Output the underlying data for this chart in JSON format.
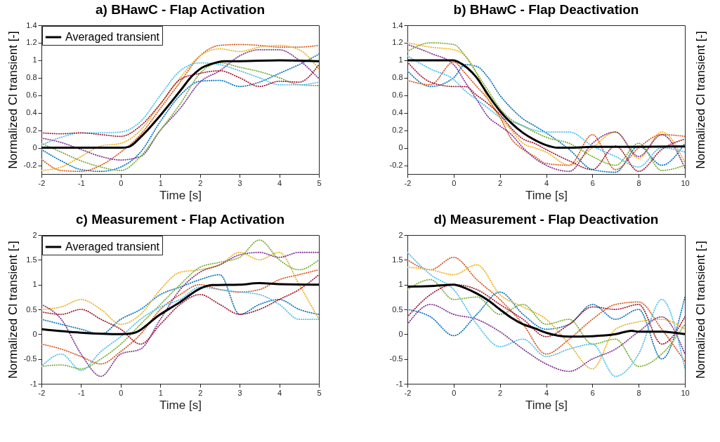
{
  "chart_data": [
    {
      "type": "line",
      "title": "a) BHawC - Flap Activation",
      "xlabel": "Time [s]",
      "ylabel": "Normalized Cl transient [-]",
      "xlim": [
        -2,
        5
      ],
      "xticks": [
        -2,
        -1,
        0,
        1,
        2,
        3,
        4,
        5
      ],
      "ylim": [
        -0.3,
        1.4
      ],
      "yticks": [
        -0.2,
        0,
        0.2,
        0.4,
        0.6,
        0.8,
        1,
        1.2,
        1.4
      ],
      "grid": false,
      "legend": "top left",
      "series": [
        {
          "color": "#0072bd",
          "line_style": "dotted",
          "x": [
            -2,
            -1.5,
            -1,
            -0.5,
            0,
            0.5,
            1,
            1.5,
            2,
            2.5,
            3,
            3.5,
            4,
            4.5,
            5
          ],
          "values": [
            -0.02,
            -0.15,
            -0.25,
            -0.27,
            -0.22,
            -0.05,
            0.3,
            0.6,
            0.76,
            0.77,
            0.7,
            0.75,
            0.85,
            0.95,
            1.07
          ]
        },
        {
          "color": "#d95319",
          "line_style": "dotted",
          "x": [
            -2,
            -1.5,
            -1,
            -0.5,
            0,
            0.5,
            1,
            1.5,
            2,
            2.5,
            3,
            3.5,
            4,
            4.5,
            5
          ],
          "values": [
            -0.13,
            -0.26,
            -0.27,
            -0.2,
            -0.05,
            0.15,
            0.45,
            0.75,
            1.05,
            1.17,
            1.18,
            1.17,
            1.15,
            1.15,
            1.17
          ]
        },
        {
          "color": "#edb120",
          "line_style": "dotted",
          "x": [
            -2,
            -1.5,
            -1,
            -0.5,
            0,
            0.5,
            1,
            1.5,
            2,
            2.5,
            3,
            3.5,
            4,
            4.5,
            5
          ],
          "values": [
            -0.26,
            -0.22,
            -0.1,
            0.02,
            0.05,
            0.2,
            0.5,
            0.8,
            1.05,
            1.13,
            1.1,
            1.15,
            1.17,
            1.12,
            0.9
          ]
        },
        {
          "color": "#7e2f8e",
          "line_style": "dotted",
          "x": [
            -2,
            -1.5,
            -1,
            -0.5,
            0,
            0.5,
            1,
            1.5,
            2,
            2.5,
            3,
            3.5,
            4,
            4.5,
            5
          ],
          "values": [
            0.11,
            0.06,
            -0.02,
            -0.1,
            -0.14,
            -0.1,
            0.2,
            0.45,
            0.75,
            0.88,
            1.05,
            1.12,
            1.12,
            1.0,
            0.79
          ]
        },
        {
          "color": "#77ac30",
          "line_style": "dotted",
          "x": [
            -2,
            -1.5,
            -1,
            -0.5,
            0,
            0.5,
            1,
            1.5,
            2,
            2.5,
            3,
            3.5,
            4,
            4.5,
            5
          ],
          "values": [
            0.05,
            -0.05,
            -0.15,
            -0.22,
            -0.26,
            -0.1,
            0.2,
            0.5,
            0.85,
            0.97,
            0.92,
            0.87,
            0.8,
            0.72,
            0.71
          ]
        },
        {
          "color": "#4dbeee",
          "line_style": "dotted",
          "x": [
            -2,
            -1.5,
            -1,
            -0.5,
            0,
            0.5,
            1,
            1.5,
            2,
            2.5,
            3,
            3.5,
            4,
            4.5,
            5
          ],
          "values": [
            0.03,
            0.12,
            0.17,
            0.17,
            0.18,
            0.3,
            0.6,
            0.88,
            0.97,
            0.95,
            0.88,
            0.8,
            0.72,
            0.72,
            0.75
          ]
        },
        {
          "color": "#a2142f",
          "line_style": "dotted",
          "x": [
            -2,
            -1.5,
            -1,
            -0.5,
            0,
            0.5,
            1,
            1.5,
            2,
            2.5,
            3,
            3.5,
            4,
            4.5,
            5
          ],
          "values": [
            0.17,
            0.16,
            0.17,
            0.15,
            0.13,
            0.25,
            0.5,
            0.78,
            0.85,
            0.88,
            0.8,
            0.7,
            0.76,
            0.75,
            0.95
          ]
        },
        {
          "name": "Averaged transient",
          "color": "#000000",
          "line_style": "solid",
          "x": [
            -2,
            -1,
            0,
            0.2,
            0.5,
            1,
            1.5,
            1.8,
            2,
            2.3,
            2.6,
            3,
            4,
            5
          ],
          "values": [
            0,
            0,
            0,
            0.01,
            0.12,
            0.37,
            0.65,
            0.82,
            0.9,
            0.96,
            0.99,
            0.99,
            1.0,
            0.99
          ]
        }
      ]
    },
    {
      "type": "line",
      "title": "b) BHawC - Flap Deactivation",
      "xlabel": "Time [s]",
      "ylabel": "Normalized Cl transient [-]",
      "xlim": [
        -2,
        10
      ],
      "xticks": [
        -2,
        0,
        2,
        4,
        6,
        8,
        10
      ],
      "ylim": [
        -0.3,
        1.4
      ],
      "yticks": [
        -0.2,
        0,
        0.2,
        0.4,
        0.6,
        0.8,
        1,
        1.2,
        1.4
      ],
      "grid": false,
      "series": [
        {
          "color": "#0072bd",
          "line_style": "dotted",
          "x": [
            -2,
            -1,
            0,
            0.5,
            1,
            1.5,
            2,
            2.5,
            3,
            3.5,
            4,
            5,
            6,
            7,
            8,
            9,
            10
          ],
          "values": [
            0.88,
            0.7,
            0.8,
            0.95,
            0.93,
            0.8,
            0.6,
            0.45,
            0.33,
            0.25,
            0.17,
            -0.02,
            -0.25,
            -0.28,
            0.02,
            -0.2,
            0.05
          ]
        },
        {
          "color": "#d95319",
          "line_style": "dotted",
          "x": [
            -2,
            -1,
            0,
            0.5,
            1,
            1.5,
            2,
            2.5,
            3,
            3.5,
            4,
            5,
            6,
            7,
            8,
            9,
            10
          ],
          "values": [
            0.77,
            0.72,
            0.98,
            0.85,
            0.7,
            0.55,
            0.35,
            0.1,
            -0.02,
            -0.1,
            -0.18,
            -0.2,
            0.15,
            -0.25,
            0.0,
            0.15,
            0.13
          ]
        },
        {
          "color": "#edb120",
          "line_style": "dotted",
          "x": [
            -2,
            -1,
            0,
            0.5,
            1,
            1.5,
            2,
            2.5,
            3,
            3.5,
            4,
            5,
            6,
            7,
            8,
            9,
            10
          ],
          "values": [
            1.2,
            1.15,
            1.12,
            1.05,
            0.85,
            0.55,
            0.35,
            0.2,
            0.05,
            0.0,
            -0.05,
            -0.2,
            0.0,
            0.18,
            -0.12,
            0.18,
            -0.17
          ]
        },
        {
          "color": "#7e2f8e",
          "line_style": "dotted",
          "x": [
            -2,
            -1,
            0,
            0.5,
            1,
            1.5,
            2,
            2.5,
            3,
            3.5,
            4,
            5,
            6,
            7,
            8,
            9,
            10
          ],
          "values": [
            1.18,
            1.08,
            0.95,
            0.75,
            0.55,
            0.35,
            0.25,
            0.15,
            0.0,
            -0.12,
            -0.2,
            -0.27,
            0.05,
            0.18,
            -0.1,
            0.15,
            -0.23
          ]
        },
        {
          "color": "#77ac30",
          "line_style": "dotted",
          "x": [
            -2,
            -1,
            0,
            0.5,
            1,
            1.5,
            2,
            2.5,
            3,
            3.5,
            4,
            5,
            6,
            7,
            8,
            9,
            10
          ],
          "values": [
            1.1,
            1.2,
            1.18,
            1.05,
            0.85,
            0.65,
            0.45,
            0.32,
            0.25,
            0.18,
            0.12,
            0.05,
            -0.1,
            -0.2,
            0.05,
            -0.26,
            -0.2
          ]
        },
        {
          "color": "#4dbeee",
          "line_style": "dotted",
          "x": [
            -2,
            -1,
            0,
            0.5,
            1,
            1.5,
            2,
            2.5,
            3,
            3.5,
            4,
            5,
            6,
            7,
            8,
            9,
            10
          ],
          "values": [
            1.05,
            0.9,
            0.78,
            0.65,
            0.55,
            0.45,
            0.35,
            0.3,
            0.25,
            0.2,
            0.18,
            0.18,
            0.02,
            -0.1,
            -0.22,
            0.0,
            -0.05
          ]
        },
        {
          "color": "#a2142f",
          "line_style": "dotted",
          "x": [
            -2,
            -1,
            0,
            0.5,
            1,
            1.5,
            2,
            2.5,
            3,
            3.5,
            4,
            5,
            6,
            7,
            8,
            9,
            10
          ],
          "values": [
            0.98,
            0.75,
            0.7,
            0.7,
            0.6,
            0.5,
            0.38,
            0.22,
            0.1,
            0.05,
            -0.02,
            -0.15,
            -0.25,
            0.02,
            -0.27,
            -0.02,
            0.1
          ]
        },
        {
          "color": "#000000",
          "line_style": "solid",
          "x": [
            -2,
            0,
            0.2,
            1,
            1.5,
            2,
            2.5,
            3,
            3.5,
            4,
            4.5,
            5,
            6,
            8,
            10
          ],
          "values": [
            1,
            1,
            0.98,
            0.8,
            0.6,
            0.42,
            0.28,
            0.17,
            0.09,
            0.03,
            0.0,
            0,
            0.01,
            0.01,
            0.015
          ]
        }
      ]
    },
    {
      "type": "line",
      "title": "c) Measurement - Flap Activation",
      "xlabel": "Time [s]",
      "ylabel": "Normalized Cl transient [-]",
      "xlim": [
        -2,
        5
      ],
      "xticks": [
        -2,
        -1,
        0,
        1,
        2,
        3,
        4,
        5
      ],
      "ylim": [
        -1,
        2
      ],
      "yticks": [
        -1,
        -0.5,
        0,
        0.5,
        1,
        1.5,
        2
      ],
      "grid": false,
      "legend": "top left",
      "series": [
        {
          "color": "#0072bd",
          "line_style": "dotted",
          "x": [
            -2,
            -1.5,
            -1,
            -0.5,
            0,
            0.5,
            1,
            1.5,
            2,
            2.5,
            3,
            3.5,
            4,
            4.5,
            5
          ],
          "values": [
            0.3,
            0.2,
            0.1,
            0.0,
            0.3,
            0.5,
            0.8,
            0.95,
            1.1,
            1.2,
            0.4,
            0.6,
            0.7,
            0.5,
            0.4
          ]
        },
        {
          "color": "#d95319",
          "line_style": "dotted",
          "x": [
            -2,
            -1.5,
            -1,
            -0.5,
            0,
            0.5,
            1,
            1.5,
            2,
            2.5,
            3,
            3.5,
            4,
            4.5,
            5
          ],
          "values": [
            -0.2,
            -0.3,
            -0.45,
            -0.6,
            -0.35,
            0.0,
            0.5,
            0.8,
            1.0,
            0.9,
            0.85,
            0.9,
            1.1,
            1.2,
            1.3
          ]
        },
        {
          "color": "#edb120",
          "line_style": "dotted",
          "x": [
            -2,
            -1.5,
            -1,
            -0.5,
            0,
            0.5,
            1,
            1.5,
            2,
            2.5,
            3,
            3.5,
            4,
            4.5,
            5
          ],
          "values": [
            0.5,
            0.55,
            0.7,
            0.5,
            0.2,
            0.4,
            0.9,
            1.25,
            1.3,
            1.4,
            1.65,
            1.5,
            1.65,
            1.0,
            0.3
          ]
        },
        {
          "color": "#7e2f8e",
          "line_style": "dotted",
          "x": [
            -2,
            -1.5,
            -1,
            -0.5,
            0,
            0.5,
            1,
            1.5,
            2,
            2.5,
            3,
            3.5,
            4,
            4.5,
            5
          ],
          "values": [
            0.6,
            0.3,
            -0.4,
            -0.85,
            -0.4,
            -0.3,
            0.3,
            0.9,
            1.25,
            1.4,
            1.6,
            1.65,
            1.55,
            1.65,
            1.65
          ]
        },
        {
          "color": "#77ac30",
          "line_style": "dotted",
          "x": [
            -2,
            -1.5,
            -1,
            -0.5,
            0,
            0.5,
            1,
            1.5,
            2,
            2.5,
            3,
            3.5,
            4,
            4.5,
            5
          ],
          "values": [
            -0.65,
            -0.62,
            -0.7,
            -0.5,
            -0.2,
            0.2,
            0.6,
            1.0,
            1.35,
            1.45,
            1.55,
            1.9,
            1.5,
            1.3,
            1.5
          ]
        },
        {
          "color": "#4dbeee",
          "line_style": "dotted",
          "x": [
            -2,
            -1.5,
            -1,
            -0.5,
            0,
            0.5,
            1,
            1.5,
            2,
            2.5,
            3,
            3.5,
            4,
            4.5,
            5
          ],
          "values": [
            -0.65,
            -0.4,
            -0.73,
            -0.35,
            -0.05,
            0.3,
            0.55,
            0.7,
            0.95,
            0.9,
            0.85,
            0.8,
            0.6,
            0.3,
            0.3
          ]
        },
        {
          "color": "#a2142f",
          "line_style": "dotted",
          "x": [
            -2,
            -1.5,
            -1,
            -0.5,
            0,
            0.5,
            1,
            1.5,
            2,
            2.5,
            3,
            3.5,
            4,
            4.5,
            5
          ],
          "values": [
            0.45,
            0.4,
            0.5,
            0.3,
            0.1,
            -0.2,
            0.2,
            0.6,
            0.8,
            0.6,
            0.4,
            0.5,
            0.7,
            0.9,
            1.2
          ]
        },
        {
          "name": "Averaged transient",
          "color": "#000000",
          "line_style": "solid",
          "x": [
            -2,
            -1,
            0,
            0.3,
            1,
            1.5,
            2,
            2.3,
            3,
            3.5,
            4,
            5
          ],
          "values": [
            0.1,
            0.03,
            0.0,
            0.02,
            0.4,
            0.65,
            0.92,
            0.99,
            1.0,
            1.03,
            1.01,
            1.0
          ]
        }
      ]
    },
    {
      "type": "line",
      "title": "d) Measurement - Flap Deactivation",
      "xlabel": "Time [s]",
      "ylabel": "Normalized Cl transient [-]",
      "xlim": [
        -2,
        10
      ],
      "xticks": [
        -2,
        0,
        2,
        4,
        6,
        8,
        10
      ],
      "ylim": [
        -1,
        2
      ],
      "yticks": [
        -1,
        -0.5,
        0,
        0.5,
        1,
        1.5,
        2
      ],
      "grid": false,
      "series": [
        {
          "color": "#0072bd",
          "line_style": "dotted",
          "x": [
            -2,
            -1,
            0,
            1,
            2,
            3,
            4,
            5,
            6,
            7,
            8,
            9,
            10
          ],
          "values": [
            0.5,
            0.35,
            -0.03,
            0.4,
            0.85,
            0.4,
            0.1,
            0.2,
            0.6,
            0.3,
            0.5,
            -0.5,
            0.75
          ]
        },
        {
          "color": "#d95319",
          "line_style": "dotted",
          "x": [
            -2,
            -1,
            0,
            1,
            2,
            3,
            4,
            5,
            6,
            7,
            8,
            9,
            10
          ],
          "values": [
            1.5,
            1.3,
            1.55,
            1.1,
            0.7,
            0.2,
            -0.4,
            -0.1,
            0.3,
            0.6,
            0.65,
            0.1,
            -0.55
          ]
        },
        {
          "color": "#edb120",
          "line_style": "dotted",
          "x": [
            -2,
            -1,
            0,
            1,
            2,
            3,
            4,
            5,
            6,
            7,
            8,
            9,
            10
          ],
          "values": [
            1.35,
            1.3,
            1.2,
            1.4,
            0.8,
            0.55,
            0.3,
            -0.2,
            -0.7,
            0.1,
            0.25,
            0.3,
            0.1
          ]
        },
        {
          "color": "#7e2f8e",
          "line_style": "dotted",
          "x": [
            -2,
            -1,
            0,
            1,
            2,
            3,
            4,
            5,
            6,
            7,
            8,
            9,
            10
          ],
          "values": [
            0.2,
            0.6,
            0.4,
            0.3,
            0.05,
            -0.3,
            -0.6,
            -0.75,
            -0.5,
            -0.3,
            0.05,
            0.35,
            -0.4
          ]
        },
        {
          "color": "#77ac30",
          "line_style": "dotted",
          "x": [
            -2,
            -1,
            0,
            1,
            2,
            3,
            4,
            5,
            6,
            7,
            8,
            9,
            10
          ],
          "values": [
            0.9,
            1.1,
            0.7,
            0.75,
            0.4,
            0.6,
            0.2,
            0.3,
            -0.2,
            -0.1,
            -0.65,
            -0.4,
            0.2
          ]
        },
        {
          "color": "#4dbeee",
          "line_style": "dotted",
          "x": [
            -2,
            -1,
            0,
            1,
            2,
            3,
            4,
            5,
            6,
            7,
            8,
            9,
            10
          ],
          "values": [
            1.65,
            1.2,
            0.9,
            0.2,
            -0.25,
            -0.1,
            -0.45,
            -0.3,
            -0.2,
            -0.85,
            -0.4,
            0.7,
            -0.7
          ]
        },
        {
          "color": "#a2142f",
          "line_style": "dotted",
          "x": [
            -2,
            -1,
            0,
            1,
            2,
            3,
            4,
            5,
            6,
            7,
            8,
            9,
            10
          ],
          "values": [
            0.35,
            0.8,
            1.0,
            0.9,
            0.6,
            0.3,
            -0.05,
            0.2,
            0.55,
            0.5,
            0.6,
            -0.2,
            0.35
          ]
        },
        {
          "color": "#000000",
          "line_style": "solid",
          "x": [
            -2,
            -1,
            0,
            0.5,
            1,
            1.5,
            2,
            2.5,
            3,
            3.5,
            4,
            5,
            6,
            7,
            7.7,
            8,
            9,
            10
          ],
          "values": [
            0.96,
            0.97,
            1.0,
            0.93,
            0.82,
            0.68,
            0.5,
            0.33,
            0.2,
            0.12,
            0.03,
            -0.05,
            -0.04,
            0.0,
            0.07,
            0.05,
            0.05,
            0.0
          ]
        }
      ]
    }
  ]
}
